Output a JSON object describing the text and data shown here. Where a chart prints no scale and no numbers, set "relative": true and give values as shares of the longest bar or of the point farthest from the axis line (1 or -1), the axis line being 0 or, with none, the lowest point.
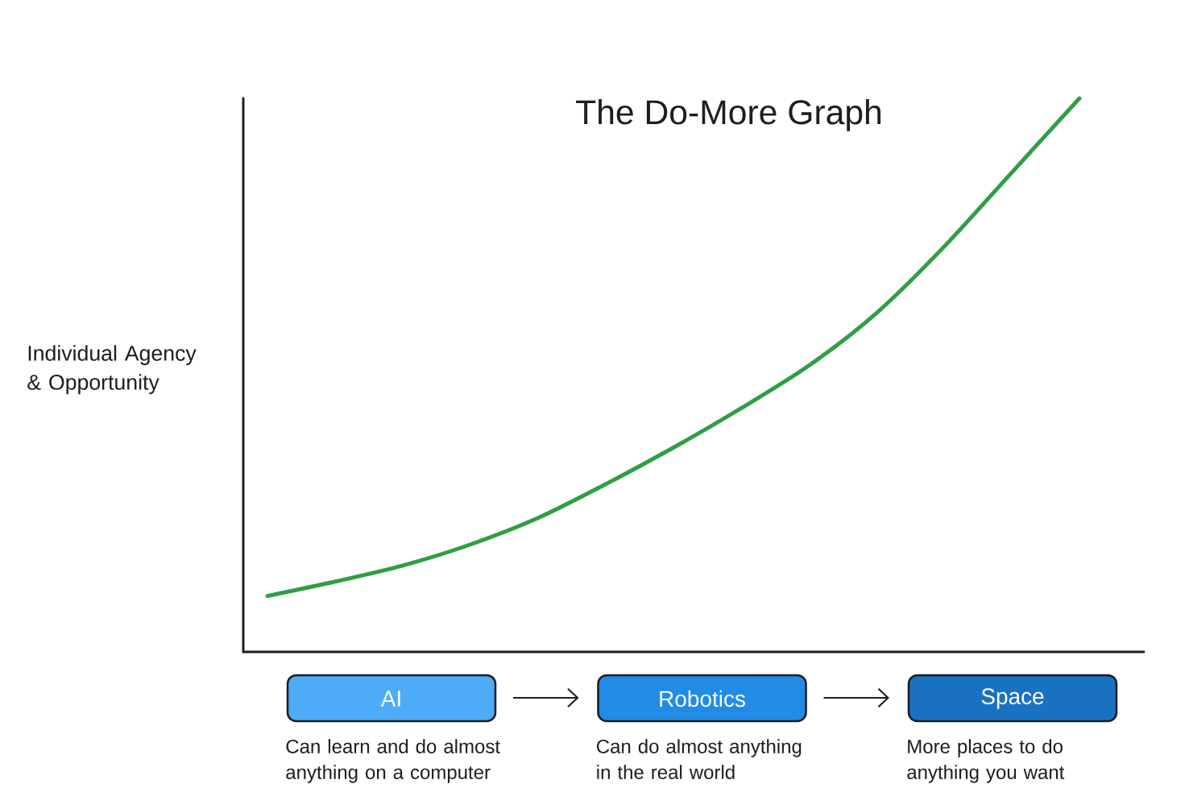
{
  "chart_data": {
    "type": "line",
    "title": "The Do-More Graph",
    "ylabel": "Individual Agency & Opportunity",
    "categories": [
      null,
      null,
      null,
      null,
      null,
      null,
      null,
      null,
      null,
      null,
      null,
      null,
      null
    ],
    "values": [
      0.101,
      0.127,
      0.156,
      0.194,
      0.242,
      0.303,
      0.369,
      0.44,
      0.517,
      0.612,
      0.732,
      0.866,
      1
    ],
    "color": "#2f9e44",
    "relative": true,
    "annotations": [
      "AI",
      "Can learn and do almost anything on a computer",
      "Robotics",
      "Can do almost anything in the real world",
      "Space",
      "More places to do anything you want"
    ]
  }
}
